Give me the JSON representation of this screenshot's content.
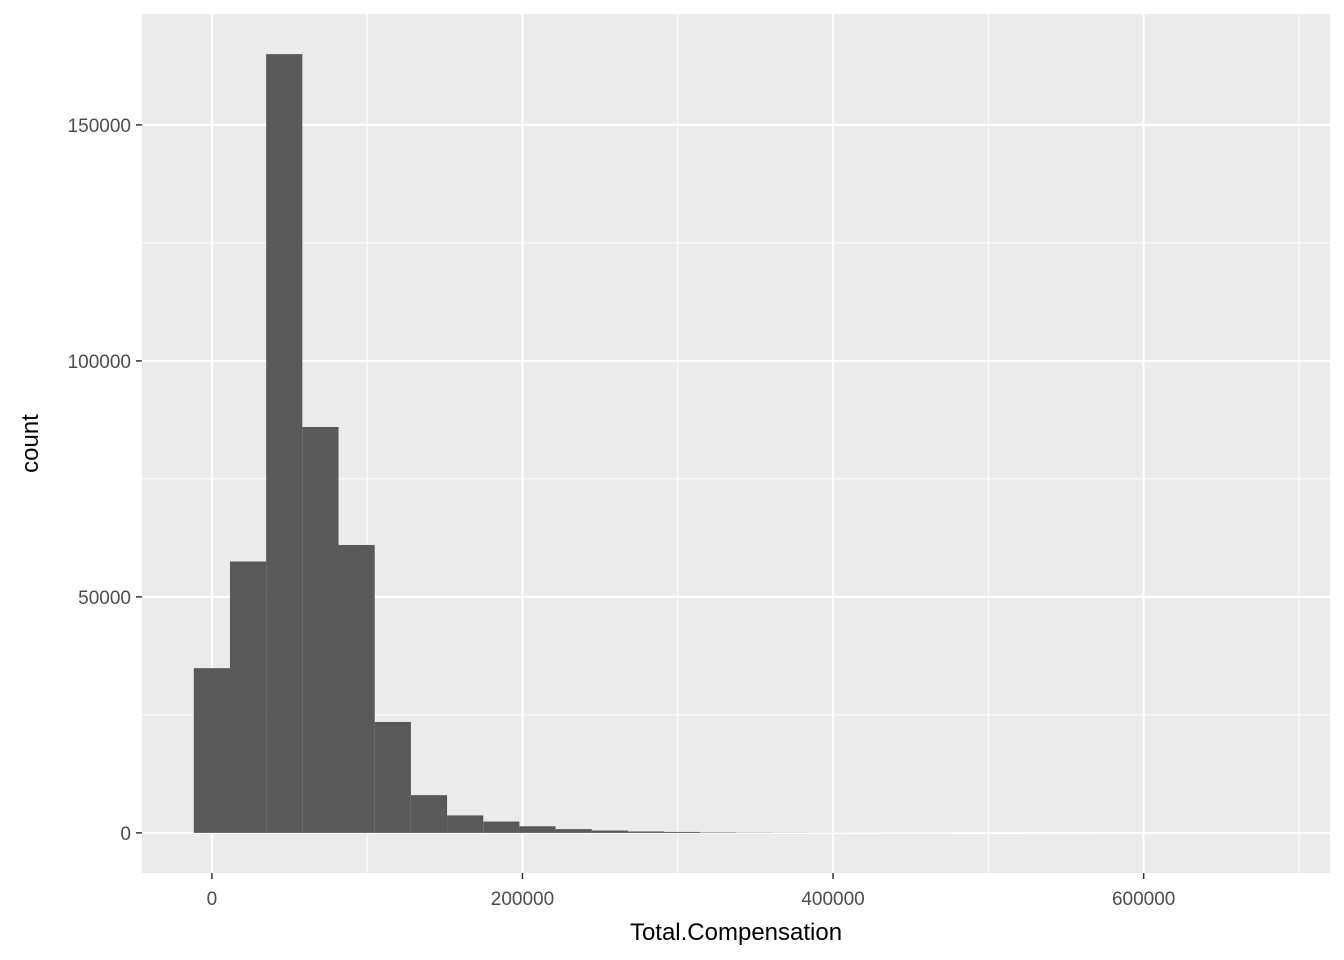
{
  "chart_data": {
    "type": "bar",
    "subtype": "histogram",
    "xlabel": "Total.Compensation",
    "ylabel": "count",
    "xlim": [
      -45000,
      720000
    ],
    "ylim": [
      -8500,
      173500
    ],
    "x_ticks": [
      0,
      200000,
      400000,
      600000
    ],
    "y_ticks": [
      0,
      50000,
      100000,
      150000
    ],
    "bin_width": 23300,
    "bins": [
      {
        "x0": -11650,
        "x1": 11650,
        "count": 34900
      },
      {
        "x0": 11650,
        "x1": 34950,
        "count": 57500
      },
      {
        "x0": 34950,
        "x1": 58250,
        "count": 165000
      },
      {
        "x0": 58250,
        "x1": 81550,
        "count": 86000
      },
      {
        "x0": 81550,
        "x1": 104850,
        "count": 61000
      },
      {
        "x0": 104850,
        "x1": 128150,
        "count": 23500
      },
      {
        "x0": 128150,
        "x1": 151450,
        "count": 8000
      },
      {
        "x0": 151450,
        "x1": 174750,
        "count": 3700
      },
      {
        "x0": 174750,
        "x1": 198050,
        "count": 2400
      },
      {
        "x0": 198050,
        "x1": 221350,
        "count": 1400
      },
      {
        "x0": 221350,
        "x1": 244650,
        "count": 800
      },
      {
        "x0": 244650,
        "x1": 267950,
        "count": 500
      },
      {
        "x0": 267950,
        "x1": 291250,
        "count": 300
      },
      {
        "x0": 291250,
        "x1": 314550,
        "count": 200
      },
      {
        "x0": 314550,
        "x1": 337850,
        "count": 100
      },
      {
        "x0": 337850,
        "x1": 361150,
        "count": 50
      },
      {
        "x0": 361150,
        "x1": 384450,
        "count": 30
      },
      {
        "x0": 384450,
        "x1": 407750,
        "count": 20
      },
      {
        "x0": 407750,
        "x1": 431050,
        "count": 15
      },
      {
        "x0": 431050,
        "x1": 454350,
        "count": 10
      },
      {
        "x0": 454350,
        "x1": 477650,
        "count": 8
      },
      {
        "x0": 477650,
        "x1": 500950,
        "count": 6
      },
      {
        "x0": 500950,
        "x1": 524250,
        "count": 5
      },
      {
        "x0": 524250,
        "x1": 547550,
        "count": 4
      },
      {
        "x0": 547550,
        "x1": 570850,
        "count": 3
      },
      {
        "x0": 570850,
        "x1": 594150,
        "count": 2
      },
      {
        "x0": 594150,
        "x1": 617450,
        "count": 2
      },
      {
        "x0": 617450,
        "x1": 640750,
        "count": 1
      },
      {
        "x0": 640750,
        "x1": 664050,
        "count": 1
      },
      {
        "x0": 664050,
        "x1": 687350,
        "count": 1
      }
    ],
    "grid": true,
    "legend": "none",
    "colors": {
      "panel_background": "#ebebeb",
      "grid_major": "#ffffff",
      "bar_fill": "#595959",
      "tick_text": "#4d4d4d",
      "axis_title": "#000000"
    }
  }
}
